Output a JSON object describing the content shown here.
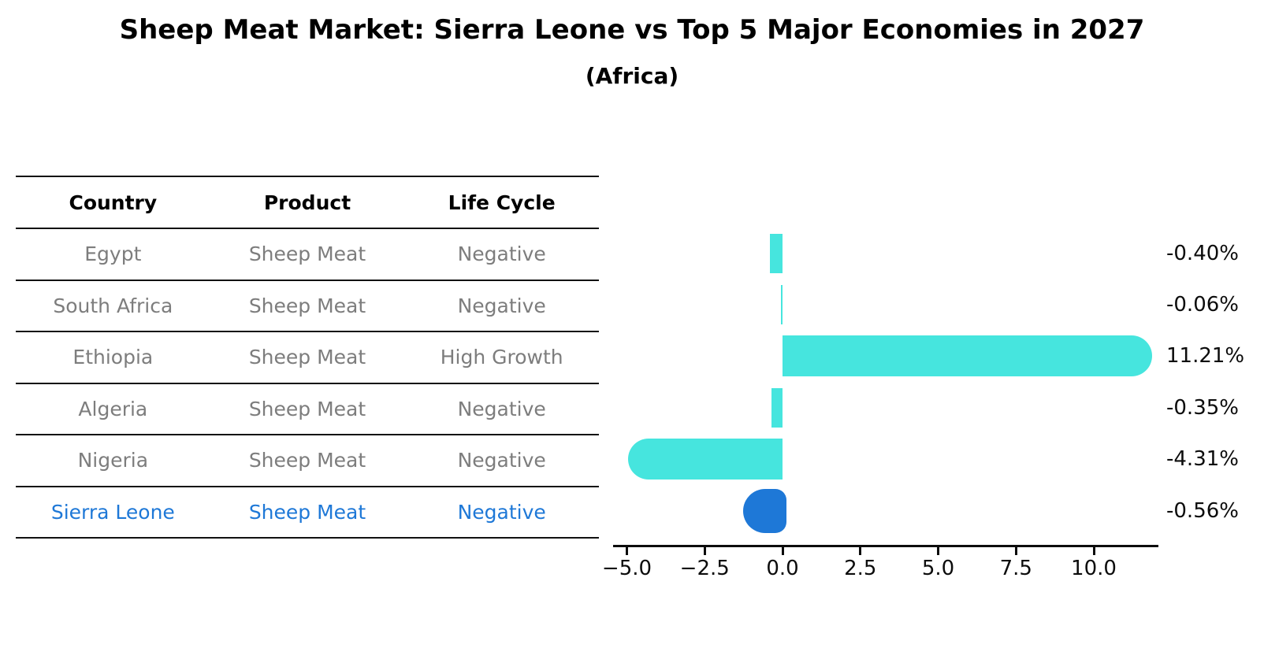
{
  "title": "Sheep Meat Market: Sierra Leone vs Top 5 Major Economies in 2027",
  "subtitle": "(Africa)",
  "table": {
    "headers": [
      "Country",
      "Product",
      "Life Cycle"
    ],
    "rows": [
      {
        "country": "Egypt",
        "product": "Sheep Meat",
        "life_cycle": "Negative",
        "highlight": false
      },
      {
        "country": "South Africa",
        "product": "Sheep Meat",
        "life_cycle": "Negative",
        "highlight": false
      },
      {
        "country": "Ethiopia",
        "product": "Sheep Meat",
        "life_cycle": "High Growth",
        "highlight": false
      },
      {
        "country": "Algeria",
        "product": "Sheep Meat",
        "life_cycle": "Negative",
        "highlight": false
      },
      {
        "country": "Nigeria",
        "product": "Sheep Meat",
        "life_cycle": "Negative",
        "highlight": false
      },
      {
        "country": "Sierra Leone",
        "product": "Sheep Meat",
        "life_cycle": "Negative",
        "highlight": true
      }
    ]
  },
  "chart_data": {
    "type": "bar",
    "orientation": "horizontal",
    "title": "Sheep Meat Market: Sierra Leone vs Top 5 Major Economies in 2027 (Africa)",
    "categories": [
      "Egypt",
      "South Africa",
      "Ethiopia",
      "Algeria",
      "Nigeria",
      "Sierra Leone"
    ],
    "values": [
      -0.4,
      -0.06,
      11.21,
      -0.35,
      -4.31,
      -0.56
    ],
    "value_labels": [
      "-0.40%",
      "-0.06%",
      "11.21%",
      "-0.35%",
      "-4.31%",
      "-0.56%"
    ],
    "xlabel": "",
    "ylabel": "",
    "xlim": [
      -5.45,
      12.1
    ],
    "xticks": [
      -5.0,
      -2.5,
      0.0,
      2.5,
      5.0,
      7.5,
      10.0
    ],
    "xtick_labels": [
      "−5.0",
      "−2.5",
      "0.0",
      "2.5",
      "5.0",
      "7.5",
      "10.0"
    ],
    "grid": false,
    "legend": "none",
    "bar_color": "#46e5de",
    "highlight_color": "#1e78d7",
    "highlight_index": 5
  },
  "colors": {
    "bar_cyan": "#46e5de",
    "bar_blue": "#1e78d7",
    "table_text_gray": "#7d7d7d",
    "highlight_text_blue": "#1e78d7",
    "line_black": "#111111"
  }
}
